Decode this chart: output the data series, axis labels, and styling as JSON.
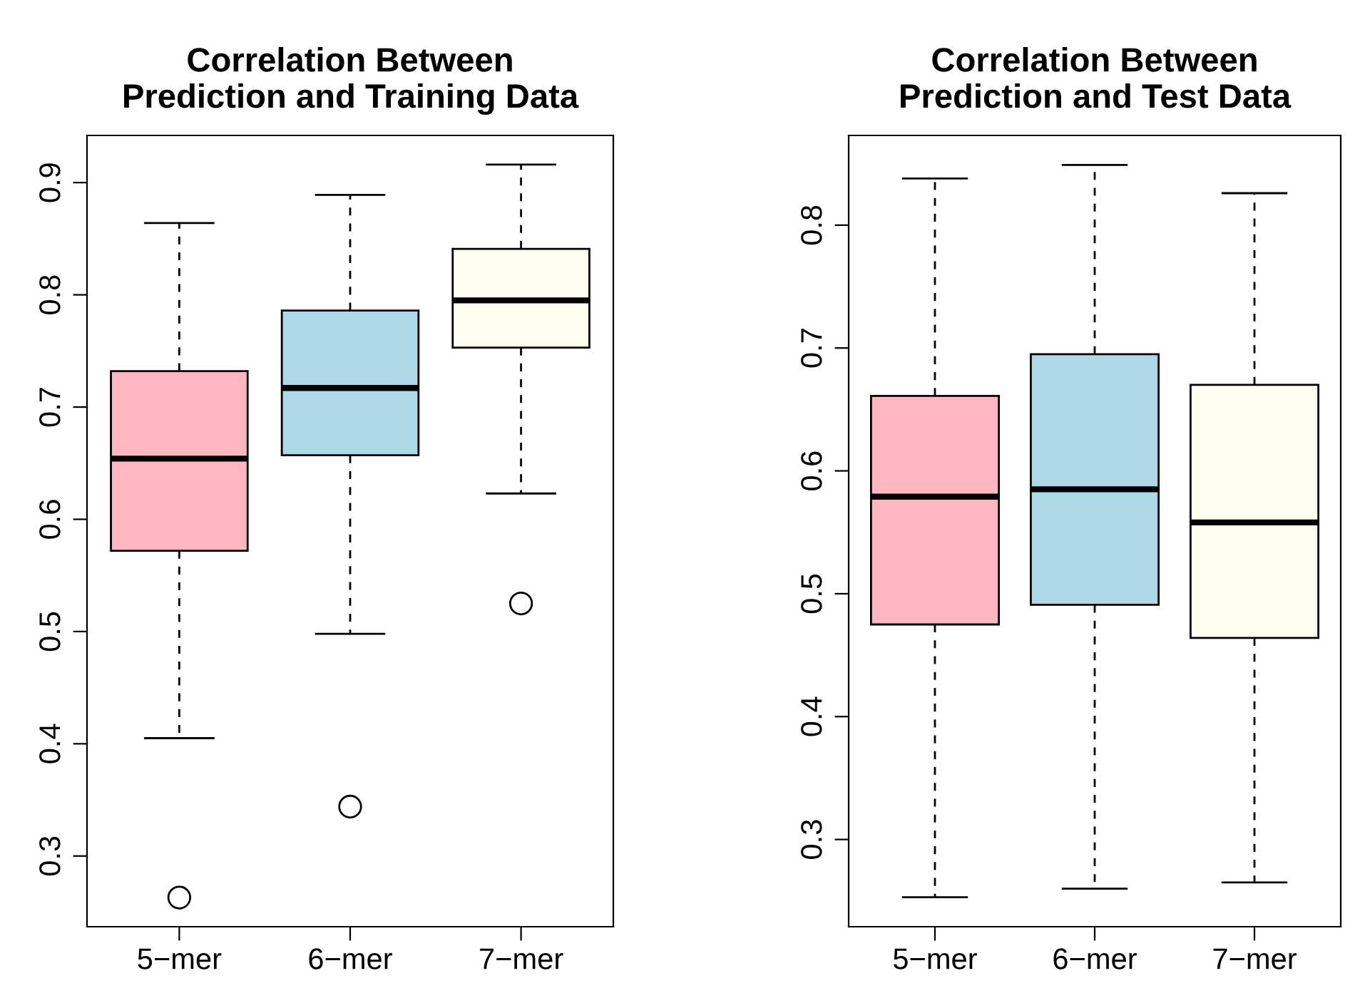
{
  "chart_data": [
    {
      "type": "box",
      "title": "Correlation Between\nPrediction and Training Data",
      "categories": [
        "5−mer",
        "6−mer",
        "7−mer"
      ],
      "colors": [
        "#ffb6c1",
        "#add8e6",
        "#fffff0"
      ],
      "ylim": [
        0.237,
        0.942
      ],
      "yticks": [
        0.3,
        0.4,
        0.5,
        0.6,
        0.7,
        0.8,
        0.9
      ],
      "grid": false,
      "boxes": [
        {
          "low": 0.405,
          "q1": 0.572,
          "median": 0.654,
          "q3": 0.732,
          "high": 0.864,
          "outliers": [
            0.263
          ]
        },
        {
          "low": 0.498,
          "q1": 0.657,
          "median": 0.717,
          "q3": 0.786,
          "high": 0.889,
          "outliers": [
            0.344
          ]
        },
        {
          "low": 0.623,
          "q1": 0.753,
          "median": 0.795,
          "q3": 0.841,
          "high": 0.916,
          "outliers": [
            0.525
          ]
        }
      ]
    },
    {
      "type": "box",
      "title": "Correlation Between\nPrediction and Test Data",
      "categories": [
        "5−mer",
        "6−mer",
        "7−mer"
      ],
      "colors": [
        "#ffb6c1",
        "#add8e6",
        "#fffff0"
      ],
      "ylim": [
        0.229,
        0.873
      ],
      "yticks": [
        0.3,
        0.4,
        0.5,
        0.6,
        0.7,
        0.8
      ],
      "grid": false,
      "boxes": [
        {
          "low": 0.253,
          "q1": 0.475,
          "median": 0.579,
          "q3": 0.661,
          "high": 0.838
        },
        {
          "low": 0.26,
          "q1": 0.491,
          "median": 0.585,
          "q3": 0.695,
          "high": 0.849
        },
        {
          "low": 0.265,
          "q1": 0.464,
          "median": 0.558,
          "q3": 0.67,
          "high": 0.826
        }
      ]
    }
  ]
}
